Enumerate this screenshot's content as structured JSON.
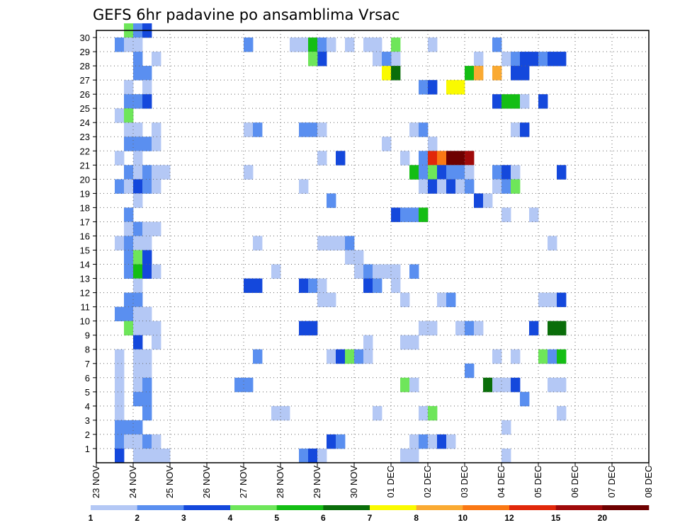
{
  "chart_data": {
    "type": "heatmap",
    "title": "GEFS 6hr padavine po ansamblima Vrsac",
    "xlabel": "",
    "ylabel": "",
    "x_tick_labels": [
      "23 NOV",
      "24 NOV",
      "25 NOV",
      "26 NOV",
      "27 NOV",
      "28 NOV",
      "29 NOV",
      "30 NOV",
      "01 DEC",
      "02 DEC",
      "03 DEC",
      "04 DEC",
      "05 DEC",
      "06 DEC",
      "07 DEC",
      "08 DEC"
    ],
    "y_tick_labels": [
      "1",
      "2",
      "3",
      "4",
      "5",
      "6",
      "7",
      "8",
      "9",
      "10",
      "11",
      "12",
      "13",
      "14",
      "15",
      "16",
      "17",
      "18",
      "19",
      "20",
      "21",
      "22",
      "23",
      "24",
      "25",
      "26",
      "27",
      "28",
      "29",
      "30"
    ],
    "x_range_steps": [
      0,
      60
    ],
    "y_range": [
      0,
      30
    ],
    "grid": true,
    "colorbar": {
      "levels": [
        "1",
        "2",
        "3",
        "4",
        "5",
        "6",
        "7",
        "8",
        "10",
        "12",
        "15",
        "20"
      ],
      "colors": [
        "#b4c8f5",
        "#5a8ff0",
        "#1448dc",
        "#6ee65a",
        "#14be14",
        "#0a6e0a",
        "#fafa00",
        "#faaa32",
        "#fa7814",
        "#e1280a",
        "#a00a0a",
        "#6e0000"
      ]
    },
    "cells_note": "each cell: [step, member, colour-index]; steps are 6-hour periods from 23 NOV 00Z",
    "cells": [
      [
        4,
        30,
        4
      ],
      [
        5,
        30,
        2
      ],
      [
        6,
        30,
        3
      ],
      [
        3,
        29,
        2
      ],
      [
        4,
        29,
        1
      ],
      [
        5,
        29,
        1
      ],
      [
        17,
        29,
        2
      ],
      [
        22,
        29,
        1
      ],
      [
        23,
        29,
        1
      ],
      [
        24,
        29,
        5
      ],
      [
        25,
        29,
        2
      ],
      [
        26,
        29,
        1
      ],
      [
        28,
        29,
        1
      ],
      [
        30,
        29,
        1
      ],
      [
        31,
        29,
        1
      ],
      [
        33,
        29,
        4
      ],
      [
        37,
        29,
        1
      ],
      [
        44,
        29,
        2
      ],
      [
        5,
        28,
        2
      ],
      [
        7,
        28,
        1
      ],
      [
        33,
        28,
        1
      ],
      [
        31,
        28,
        1
      ],
      [
        32,
        28,
        2
      ],
      [
        25,
        28,
        3
      ],
      [
        24,
        28,
        4
      ],
      [
        42,
        28,
        1
      ],
      [
        45,
        28,
        1
      ],
      [
        46,
        28,
        2
      ],
      [
        47,
        28,
        3
      ],
      [
        48,
        28,
        3
      ],
      [
        49,
        28,
        2
      ],
      [
        50,
        28,
        3
      ],
      [
        51,
        28,
        3
      ],
      [
        5,
        27,
        2
      ],
      [
        6,
        27,
        2
      ],
      [
        32,
        27,
        7
      ],
      [
        33,
        27,
        6
      ],
      [
        41,
        27,
        5
      ],
      [
        42,
        27,
        8
      ],
      [
        44,
        27,
        8
      ],
      [
        46,
        27,
        3
      ],
      [
        47,
        27,
        3
      ],
      [
        4,
        26,
        1
      ],
      [
        6,
        26,
        1
      ],
      [
        36,
        26,
        2
      ],
      [
        37,
        26,
        3
      ],
      [
        39,
        26,
        7
      ],
      [
        40,
        26,
        7
      ],
      [
        4,
        25,
        2
      ],
      [
        5,
        25,
        2
      ],
      [
        6,
        25,
        3
      ],
      [
        44,
        25,
        3
      ],
      [
        45,
        25,
        5
      ],
      [
        46,
        25,
        5
      ],
      [
        47,
        25,
        1
      ],
      [
        49,
        25,
        3
      ],
      [
        3,
        24,
        1
      ],
      [
        4,
        24,
        4
      ],
      [
        4,
        23,
        1
      ],
      [
        5,
        23,
        1
      ],
      [
        7,
        23,
        1
      ],
      [
        17,
        23,
        1
      ],
      [
        18,
        23,
        2
      ],
      [
        23,
        23,
        2
      ],
      [
        24,
        23,
        2
      ],
      [
        25,
        23,
        1
      ],
      [
        35,
        23,
        1
      ],
      [
        36,
        23,
        2
      ],
      [
        46,
        23,
        1
      ],
      [
        47,
        23,
        3
      ],
      [
        4,
        22,
        2
      ],
      [
        5,
        22,
        2
      ],
      [
        6,
        22,
        2
      ],
      [
        7,
        22,
        1
      ],
      [
        32,
        22,
        1
      ],
      [
        37,
        22,
        1
      ],
      [
        3,
        21,
        1
      ],
      [
        5,
        21,
        1
      ],
      [
        25,
        21,
        1
      ],
      [
        27,
        21,
        3
      ],
      [
        34,
        21,
        1
      ],
      [
        36,
        21,
        2
      ],
      [
        37,
        21,
        10
      ],
      [
        38,
        21,
        9
      ],
      [
        39,
        21,
        12
      ],
      [
        40,
        21,
        12
      ],
      [
        41,
        21,
        11
      ],
      [
        4,
        20,
        2
      ],
      [
        5,
        20,
        1
      ],
      [
        6,
        20,
        2
      ],
      [
        7,
        20,
        1
      ],
      [
        8,
        20,
        1
      ],
      [
        17,
        20,
        1
      ],
      [
        35,
        20,
        5
      ],
      [
        36,
        20,
        2
      ],
      [
        37,
        20,
        4
      ],
      [
        38,
        20,
        3
      ],
      [
        39,
        20,
        2
      ],
      [
        40,
        20,
        2
      ],
      [
        41,
        20,
        1
      ],
      [
        44,
        20,
        2
      ],
      [
        45,
        20,
        3
      ],
      [
        46,
        20,
        1
      ],
      [
        51,
        20,
        3
      ],
      [
        3,
        19,
        2
      ],
      [
        4,
        19,
        1
      ],
      [
        5,
        19,
        3
      ],
      [
        6,
        19,
        2
      ],
      [
        7,
        19,
        1
      ],
      [
        23,
        19,
        1
      ],
      [
        36,
        19,
        1
      ],
      [
        37,
        19,
        3
      ],
      [
        38,
        19,
        1
      ],
      [
        39,
        19,
        3
      ],
      [
        40,
        19,
        1
      ],
      [
        41,
        19,
        2
      ],
      [
        44,
        19,
        1
      ],
      [
        45,
        19,
        2
      ],
      [
        46,
        19,
        4
      ],
      [
        5,
        18,
        1
      ],
      [
        26,
        18,
        2
      ],
      [
        42,
        18,
        3
      ],
      [
        43,
        18,
        1
      ],
      [
        4,
        17,
        2
      ],
      [
        33,
        17,
        3
      ],
      [
        34,
        17,
        2
      ],
      [
        35,
        17,
        2
      ],
      [
        36,
        17,
        5
      ],
      [
        45,
        17,
        1
      ],
      [
        48,
        17,
        1
      ],
      [
        4,
        16,
        1
      ],
      [
        5,
        16,
        2
      ],
      [
        6,
        16,
        1
      ],
      [
        7,
        16,
        1
      ],
      [
        3,
        15,
        1
      ],
      [
        4,
        15,
        2
      ],
      [
        5,
        15,
        1
      ],
      [
        6,
        15,
        1
      ],
      [
        18,
        15,
        1
      ],
      [
        25,
        15,
        1
      ],
      [
        26,
        15,
        1
      ],
      [
        27,
        15,
        1
      ],
      [
        28,
        15,
        2
      ],
      [
        50,
        15,
        1
      ],
      [
        4,
        14,
        2
      ],
      [
        5,
        14,
        4
      ],
      [
        6,
        14,
        3
      ],
      [
        28,
        14,
        1
      ],
      [
        29,
        14,
        1
      ],
      [
        4,
        13,
        2
      ],
      [
        5,
        13,
        5
      ],
      [
        6,
        13,
        3
      ],
      [
        7,
        13,
        1
      ],
      [
        20,
        13,
        1
      ],
      [
        29,
        13,
        1
      ],
      [
        30,
        13,
        2
      ],
      [
        31,
        13,
        1
      ],
      [
        32,
        13,
        1
      ],
      [
        33,
        13,
        1
      ],
      [
        35,
        13,
        2
      ],
      [
        5,
        12,
        1
      ],
      [
        17,
        12,
        3
      ],
      [
        18,
        12,
        3
      ],
      [
        23,
        12,
        3
      ],
      [
        24,
        12,
        2
      ],
      [
        25,
        12,
        1
      ],
      [
        30,
        12,
        3
      ],
      [
        31,
        12,
        2
      ],
      [
        33,
        12,
        1
      ],
      [
        4,
        11,
        2
      ],
      [
        5,
        11,
        2
      ],
      [
        25,
        11,
        1
      ],
      [
        26,
        11,
        1
      ],
      [
        34,
        11,
        1
      ],
      [
        38,
        11,
        1
      ],
      [
        39,
        11,
        2
      ],
      [
        49,
        11,
        1
      ],
      [
        50,
        11,
        1
      ],
      [
        51,
        11,
        3
      ],
      [
        3,
        10,
        2
      ],
      [
        4,
        10,
        2
      ],
      [
        5,
        10,
        1
      ],
      [
        6,
        10,
        1
      ],
      [
        4,
        9,
        4
      ],
      [
        5,
        9,
        1
      ],
      [
        6,
        9,
        1
      ],
      [
        7,
        9,
        1
      ],
      [
        23,
        9,
        3
      ],
      [
        24,
        9,
        3
      ],
      [
        36,
        9,
        1
      ],
      [
        37,
        9,
        1
      ],
      [
        40,
        9,
        1
      ],
      [
        41,
        9,
        2
      ],
      [
        42,
        9,
        1
      ],
      [
        48,
        9,
        3
      ],
      [
        50,
        9,
        6
      ],
      [
        51,
        9,
        6
      ],
      [
        5,
        8,
        3
      ],
      [
        7,
        8,
        1
      ],
      [
        30,
        8,
        1
      ],
      [
        34,
        8,
        1
      ],
      [
        35,
        8,
        1
      ],
      [
        3,
        7,
        1
      ],
      [
        5,
        7,
        1
      ],
      [
        6,
        7,
        1
      ],
      [
        18,
        7,
        2
      ],
      [
        26,
        7,
        1
      ],
      [
        27,
        7,
        3
      ],
      [
        28,
        7,
        4
      ],
      [
        29,
        7,
        2
      ],
      [
        30,
        7,
        1
      ],
      [
        44,
        7,
        1
      ],
      [
        46,
        7,
        1
      ],
      [
        49,
        7,
        4
      ],
      [
        50,
        7,
        2
      ],
      [
        51,
        7,
        5
      ],
      [
        3,
        6,
        1
      ],
      [
        5,
        6,
        1
      ],
      [
        6,
        6,
        1
      ],
      [
        41,
        6,
        2
      ],
      [
        3,
        5,
        1
      ],
      [
        5,
        5,
        1
      ],
      [
        6,
        5,
        2
      ],
      [
        16,
        5,
        2
      ],
      [
        17,
        5,
        2
      ],
      [
        34,
        5,
        4
      ],
      [
        35,
        5,
        1
      ],
      [
        43,
        5,
        6
      ],
      [
        44,
        5,
        1
      ],
      [
        45,
        5,
        1
      ],
      [
        46,
        5,
        3
      ],
      [
        50,
        5,
        1
      ],
      [
        51,
        5,
        1
      ],
      [
        3,
        4,
        1
      ],
      [
        5,
        4,
        2
      ],
      [
        6,
        4,
        2
      ],
      [
        47,
        4,
        2
      ],
      [
        3,
        3,
        1
      ],
      [
        6,
        3,
        2
      ],
      [
        20,
        3,
        1
      ],
      [
        21,
        3,
        1
      ],
      [
        31,
        3,
        1
      ],
      [
        36,
        3,
        1
      ],
      [
        37,
        3,
        4
      ],
      [
        51,
        3,
        1
      ],
      [
        3,
        2,
        2
      ],
      [
        4,
        2,
        2
      ],
      [
        5,
        2,
        2
      ],
      [
        45,
        2,
        1
      ],
      [
        3,
        1,
        2
      ],
      [
        4,
        1,
        1
      ],
      [
        5,
        1,
        1
      ],
      [
        6,
        1,
        2
      ],
      [
        7,
        1,
        1
      ],
      [
        26,
        1,
        3
      ],
      [
        27,
        1,
        2
      ],
      [
        35,
        1,
        1
      ],
      [
        36,
        1,
        2
      ],
      [
        37,
        1,
        1
      ],
      [
        38,
        1,
        3
      ],
      [
        39,
        1,
        1
      ],
      [
        3,
        0,
        3
      ],
      [
        5,
        0,
        1
      ],
      [
        6,
        0,
        1
      ],
      [
        7,
        0,
        1
      ],
      [
        8,
        0,
        1
      ],
      [
        23,
        0,
        2
      ],
      [
        24,
        0,
        3
      ],
      [
        25,
        0,
        1
      ],
      [
        34,
        0,
        1
      ],
      [
        35,
        0,
        1
      ],
      [
        45,
        0,
        1
      ]
    ]
  }
}
